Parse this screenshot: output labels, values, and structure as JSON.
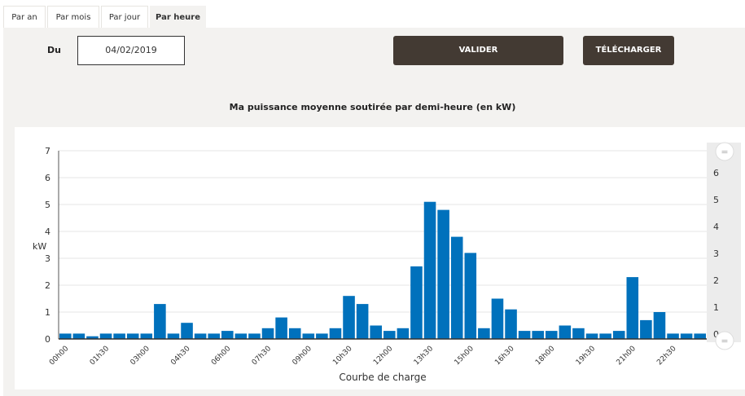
{
  "tabs": [
    {
      "label": "Par an"
    },
    {
      "label": "Par mois"
    },
    {
      "label": "Par jour"
    },
    {
      "label": "Par heure",
      "active": true
    }
  ],
  "form": {
    "du_label": "Du",
    "date_value": "04/02/2019",
    "validate_label": "VALIDER",
    "download_label": "TÉLÉCHARGER"
  },
  "colors": {
    "bar": "#0071bc",
    "button": "#433a33",
    "panel": "#f3f2f0"
  },
  "chart_data": {
    "type": "bar",
    "title": "Ma puissance moyenne soutirée par demi-heure (en kW)",
    "xlabel": "Courbe de charge",
    "ylabel": "kW",
    "ylim": [
      0,
      7
    ],
    "yticks": [
      0,
      1,
      2,
      3,
      4,
      5,
      6,
      7
    ],
    "right_axis_ticks": [
      0,
      1,
      2,
      3,
      4,
      5,
      6
    ],
    "x_tick_labels": [
      "00h00",
      "01h30",
      "03h00",
      "04h30",
      "06h00",
      "07h30",
      "09h00",
      "10h30",
      "12h00",
      "13h30",
      "15h00",
      "16h30",
      "18h00",
      "19h30",
      "21h00",
      "22h30"
    ],
    "values": [
      0.2,
      0.2,
      0.1,
      0.2,
      0.2,
      0.2,
      0.2,
      1.3,
      0.2,
      0.6,
      0.2,
      0.2,
      0.3,
      0.2,
      0.2,
      0.4,
      0.8,
      0.4,
      0.2,
      0.2,
      0.4,
      1.6,
      1.3,
      0.5,
      0.3,
      0.4,
      2.7,
      5.1,
      4.8,
      3.8,
      3.2,
      0.4,
      1.5,
      1.1,
      0.3,
      0.3,
      0.3,
      0.5,
      0.4,
      0.2,
      0.2,
      0.3,
      2.3,
      0.7,
      1.0,
      0.2,
      0.2,
      0.2
    ],
    "grid": true
  }
}
